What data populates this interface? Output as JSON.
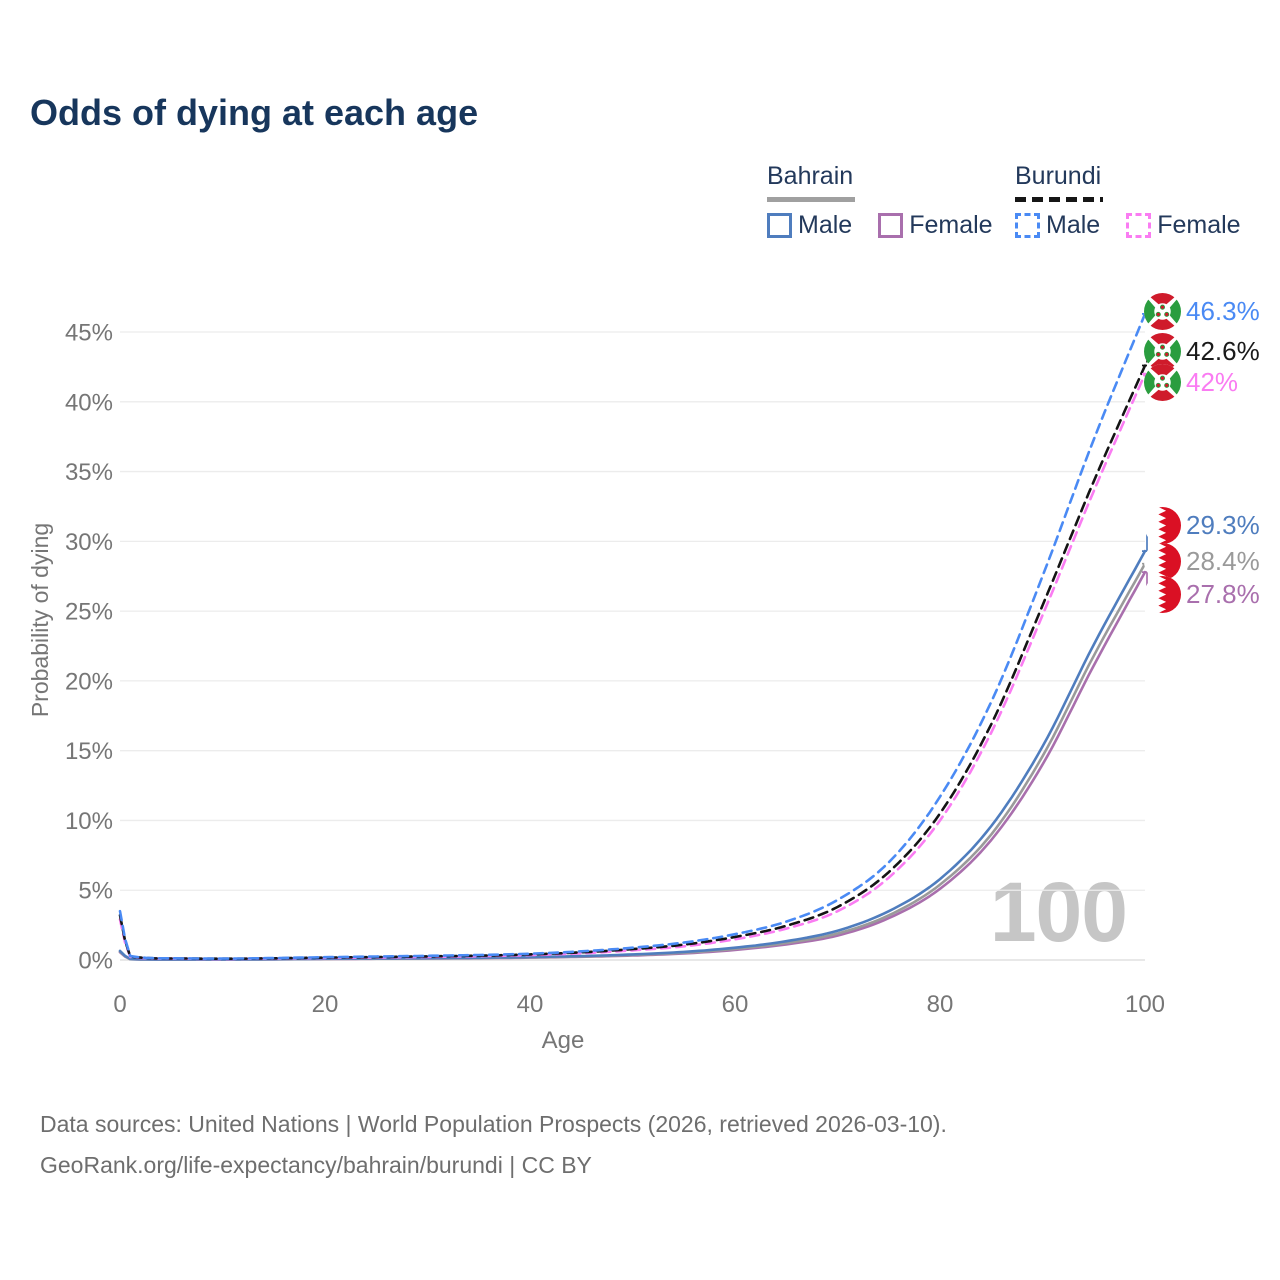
{
  "title": "Odds of dying at each age",
  "legend": {
    "groups": [
      {
        "country": "Bahrain",
        "line_style": "solid",
        "underline_color": "#a0a0a0",
        "items": [
          {
            "label": "Male",
            "color": "#4f7dbe"
          },
          {
            "label": "Female",
            "color": "#a96fad"
          }
        ]
      },
      {
        "country": "Burundi",
        "line_style": "dashed",
        "underline_color": "#161616",
        "items": [
          {
            "label": "Male",
            "color": "#4a8af4"
          },
          {
            "label": "Female",
            "color": "#fa7cf2"
          }
        ]
      }
    ]
  },
  "watermark_age": "100",
  "footer": {
    "line1": "Data sources: United Nations | World Population Prospects (2026, retrieved 2026-03-10).",
    "line2": "GeoRank.org/life-expectancy/bahrain/burundi | CC BY"
  },
  "icons": {
    "burundi_flag": "burundi-flag-icon",
    "bahrain_flag": "bahrain-flag-icon"
  },
  "chart_data": {
    "type": "line",
    "title": "Odds of dying at each age",
    "xlabel": "Age",
    "ylabel": "Probability of dying",
    "xlim": [
      0,
      100
    ],
    "ylim": [
      0,
      47
    ],
    "x_ticks": [
      0,
      20,
      40,
      60,
      80,
      100
    ],
    "y_ticks_percent": [
      0,
      5,
      10,
      15,
      20,
      25,
      30,
      35,
      40,
      45
    ],
    "grid": "horizontal",
    "legend_position": "top-right",
    "x": [
      0,
      1,
      5,
      10,
      15,
      20,
      25,
      30,
      35,
      40,
      45,
      50,
      55,
      60,
      65,
      70,
      75,
      80,
      85,
      90,
      95,
      100
    ],
    "series": [
      {
        "id": "burundi-male",
        "name": "Burundi Male",
        "color": "#4a8af4",
        "dash": true,
        "end_label": "46.3%",
        "end_value": 46.3,
        "flag": "burundi",
        "values": [
          3.5,
          0.28,
          0.12,
          0.1,
          0.14,
          0.2,
          0.25,
          0.3,
          0.36,
          0.45,
          0.62,
          0.88,
          1.25,
          1.85,
          2.75,
          4.3,
          7.0,
          11.7,
          18.5,
          27.5,
          37.3,
          46.3
        ]
      },
      {
        "id": "burundi-total",
        "name": "Burundi (both sexes)",
        "color": "#141414",
        "dash": true,
        "end_label": "42.6%",
        "end_value": 42.6,
        "flag": "burundi",
        "values": [
          3.2,
          0.25,
          0.11,
          0.09,
          0.12,
          0.17,
          0.21,
          0.26,
          0.31,
          0.4,
          0.55,
          0.78,
          1.1,
          1.65,
          2.45,
          3.8,
          6.3,
          10.5,
          16.9,
          25.4,
          34.3,
          42.6
        ]
      },
      {
        "id": "burundi-female",
        "name": "Burundi Female",
        "color": "#fa7cf2",
        "dash": true,
        "end_label": "42%",
        "end_value": 42.0,
        "flag": "burundi",
        "values": [
          2.9,
          0.22,
          0.1,
          0.08,
          0.11,
          0.15,
          0.18,
          0.22,
          0.27,
          0.35,
          0.48,
          0.69,
          0.98,
          1.48,
          2.25,
          3.5,
          5.9,
          10.0,
          16.3,
          24.7,
          33.6,
          42.0
        ]
      },
      {
        "id": "bahrain-male",
        "name": "Bahrain Male",
        "color": "#4f7dbe",
        "dash": false,
        "end_label": "29.3%",
        "end_value": 29.3,
        "flag": "bahrain",
        "values": [
          0.65,
          0.07,
          0.04,
          0.04,
          0.06,
          0.09,
          0.11,
          0.13,
          0.16,
          0.21,
          0.28,
          0.4,
          0.58,
          0.88,
          1.35,
          2.1,
          3.5,
          5.8,
          9.6,
          15.3,
          22.6,
          29.3
        ]
      },
      {
        "id": "bahrain-total",
        "name": "Bahrain (both sexes)",
        "color": "#9a9a9a",
        "dash": false,
        "end_label": "28.4%",
        "end_value": 28.4,
        "flag": "bahrain",
        "values": [
          0.6,
          0.06,
          0.035,
          0.035,
          0.05,
          0.08,
          0.1,
          0.12,
          0.15,
          0.19,
          0.25,
          0.36,
          0.52,
          0.8,
          1.22,
          1.9,
          3.2,
          5.4,
          9.0,
          14.6,
          21.8,
          28.4
        ]
      },
      {
        "id": "bahrain-female",
        "name": "Bahrain Female",
        "color": "#a96fad",
        "dash": false,
        "end_label": "27.8%",
        "end_value": 27.8,
        "flag": "bahrain",
        "values": [
          0.55,
          0.055,
          0.03,
          0.03,
          0.045,
          0.07,
          0.09,
          0.11,
          0.13,
          0.17,
          0.23,
          0.32,
          0.47,
          0.72,
          1.12,
          1.75,
          3.0,
          5.1,
          8.6,
          14.0,
          21.1,
          27.8
        ]
      }
    ]
  }
}
